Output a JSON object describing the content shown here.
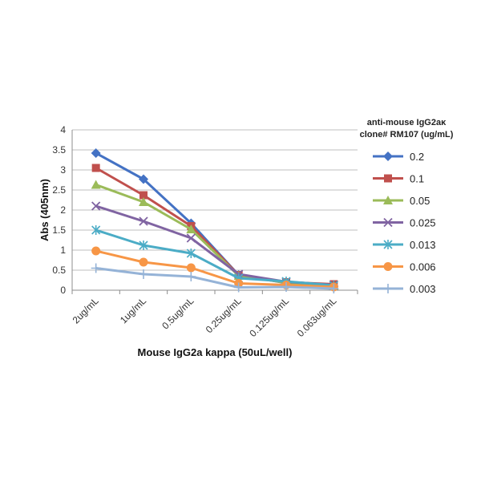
{
  "chart_data": {
    "type": "line",
    "categories": [
      "2ug/mL",
      "1ug/mL",
      "0.5ug/mL",
      "0.25ug/mL",
      "0.125ug/mL",
      "0.063ug/mL"
    ],
    "ylim": [
      0,
      4
    ],
    "yticks": [
      "0",
      "0.5",
      "1",
      "1.5",
      "2",
      "2.5",
      "3",
      "3.5",
      "4"
    ],
    "ylabel": "Abs (405nm)",
    "xlabel": "Mouse IgG2a kappa (50uL/well)",
    "legend_title_line1": "anti-mouse IgG2aκ",
    "legend_title_line2": "clone# RM107 (ug/mL)",
    "legend_position": "right",
    "grid": "horizontal",
    "series": [
      {
        "name": "0.2",
        "values": [
          3.42,
          2.77,
          1.67,
          0.38,
          0.18,
          0.1
        ],
        "color": "#4472C4",
        "marker": "diamond"
      },
      {
        "name": "0.1",
        "values": [
          3.05,
          2.37,
          1.6,
          0.38,
          0.2,
          0.15
        ],
        "color": "#C0504D",
        "marker": "square"
      },
      {
        "name": "0.05",
        "values": [
          2.63,
          2.2,
          1.52,
          0.36,
          0.19,
          0.11
        ],
        "color": "#9BBB59",
        "marker": "triangle"
      },
      {
        "name": "0.025",
        "values": [
          2.1,
          1.72,
          1.3,
          0.4,
          0.21,
          0.13
        ],
        "color": "#8064A2",
        "marker": "x"
      },
      {
        "name": "0.013",
        "values": [
          1.5,
          1.12,
          0.92,
          0.3,
          0.22,
          0.12
        ],
        "color": "#4BACC6",
        "marker": "star"
      },
      {
        "name": "0.006",
        "values": [
          0.98,
          0.7,
          0.56,
          0.17,
          0.13,
          0.08
        ],
        "color": "#F79646",
        "marker": "circle"
      },
      {
        "name": "0.003",
        "values": [
          0.55,
          0.4,
          0.34,
          0.07,
          0.08,
          0.04
        ],
        "color": "#95B3D7",
        "marker": "plus"
      }
    ]
  }
}
